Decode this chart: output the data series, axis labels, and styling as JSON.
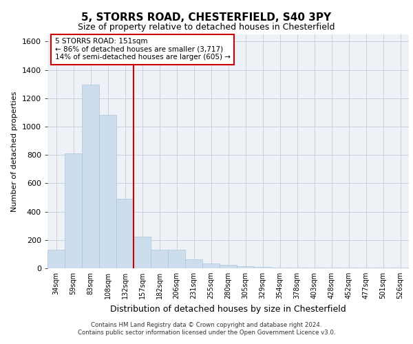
{
  "title": "5, STORRS ROAD, CHESTERFIELD, S40 3PY",
  "subtitle": "Size of property relative to detached houses in Chesterfield",
  "xlabel": "Distribution of detached houses by size in Chesterfield",
  "ylabel": "Number of detached properties",
  "bar_color": "#ccdded",
  "bar_edge_color": "#aac4d8",
  "background_color": "#eef2f7",
  "grid_color": "#c8d0dc",
  "vline_color": "#cc0000",
  "annotation_text": "5 STORRS ROAD: 151sqm\n← 86% of detached houses are smaller (3,717)\n14% of semi-detached houses are larger (605) →",
  "annotation_box_color": "#ffffff",
  "annotation_box_edge": "#cc0000",
  "categories": [
    "34sqm",
    "59sqm",
    "83sqm",
    "108sqm",
    "132sqm",
    "157sqm",
    "182sqm",
    "206sqm",
    "231sqm",
    "255sqm",
    "280sqm",
    "305sqm",
    "329sqm",
    "354sqm",
    "378sqm",
    "403sqm",
    "428sqm",
    "452sqm",
    "477sqm",
    "501sqm",
    "526sqm"
  ],
  "values": [
    130,
    810,
    1295,
    1080,
    490,
    225,
    130,
    130,
    65,
    35,
    25,
    15,
    10,
    5,
    5,
    5,
    5,
    5,
    5,
    5,
    5
  ],
  "ylim": [
    0,
    1650
  ],
  "yticks": [
    0,
    200,
    400,
    600,
    800,
    1000,
    1200,
    1400,
    1600
  ],
  "footer_line1": "Contains HM Land Registry data © Crown copyright and database right 2024.",
  "footer_line2": "Contains public sector information licensed under the Open Government Licence v3.0."
}
